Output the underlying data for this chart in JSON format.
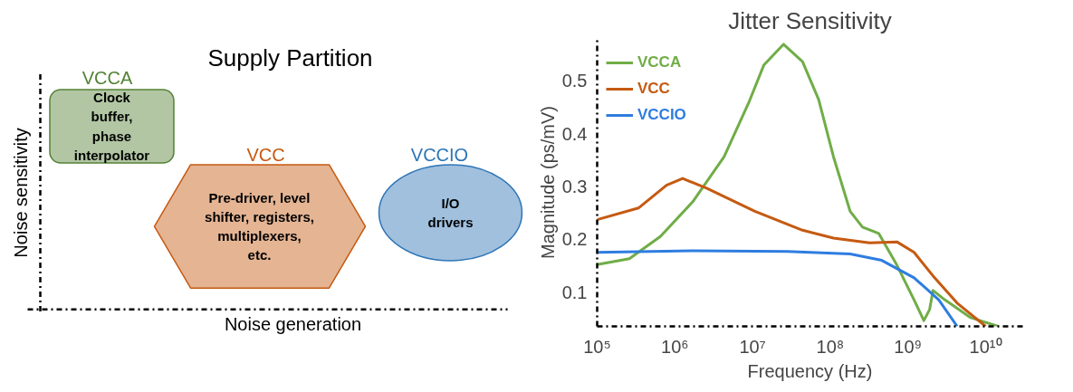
{
  "chart_data": [
    {
      "type": "other",
      "title": "Supply Partition",
      "xlabel": "Noise generation",
      "ylabel": "Noise sensitivity",
      "annotations": [
        "VCCA",
        "Clock\nbuffer,\nphase\ninterpolator",
        "VCC",
        "Pre-driver, level\nshifter, registers,\nmultiplexers,\netc.",
        "VCCIO",
        "I/O\ndrivers"
      ],
      "colors": [
        "#548235",
        "#c55a11",
        "#2e75b6"
      ]
    },
    {
      "type": "line",
      "title": "Jitter Sensitivity",
      "xlabel": "Frequency (Hz)",
      "ylabel": "Magnitude (ps/mV)",
      "log": "x",
      "xlim": [
        100000,
        30000000000
      ],
      "ylim": [
        0.035,
        0.58
      ],
      "xticks": [
        {
          "value": 100000,
          "label": "10⁵"
        },
        {
          "value": 1000000,
          "label": "10⁶"
        },
        {
          "value": 10000000,
          "label": "10⁷"
        },
        {
          "value": 100000000,
          "label": "10⁸"
        },
        {
          "value": 1000000000,
          "label": "10⁹"
        },
        {
          "value": 10000000000,
          "label": "10¹⁰"
        }
      ],
      "yticks": [
        0.1,
        0.2,
        0.3,
        0.4,
        0.5
      ],
      "grid": false,
      "legend": "top left",
      "line_style": "solid",
      "series": [
        {
          "name": "VCCA",
          "color": "#70ad47",
          "x": [
            100000,
            260000,
            650000,
            1700000,
            4300000,
            8900000,
            14000000,
            25000000,
            44000000,
            71000000,
            110000000,
            180000000,
            260000000,
            420000000,
            720000000,
            1200000000,
            1600000000,
            1900000000,
            2100000000,
            3000000000,
            6300000000,
            14500000000
          ],
          "values": [
            0.152,
            0.163,
            0.205,
            0.271,
            0.356,
            0.458,
            0.53,
            0.569,
            0.536,
            0.464,
            0.356,
            0.253,
            0.223,
            0.211,
            0.151,
            0.085,
            0.046,
            0.067,
            0.103,
            0.085,
            0.052,
            0.035
          ]
        },
        {
          "name": "VCC",
          "color": "#c55a11",
          "x": [
            100000,
            340000,
            780000,
            1260000,
            2600000,
            10700000,
            44000000,
            110000000,
            320000000,
            720000000,
            1200000000,
            2200000000,
            4300000000,
            10000000000
          ],
          "values": [
            0.237,
            0.259,
            0.302,
            0.315,
            0.296,
            0.253,
            0.217,
            0.202,
            0.193,
            0.195,
            0.175,
            0.127,
            0.079,
            0.035
          ]
        },
        {
          "name": "VCCIO",
          "color": "#2e7de0",
          "x": [
            100000,
            1700000,
            28000000,
            180000000,
            460000000,
            1200000000,
            2500000000,
            4300000000
          ],
          "values": [
            0.175,
            0.178,
            0.177,
            0.172,
            0.16,
            0.127,
            0.085,
            0.035
          ]
        }
      ]
    }
  ]
}
